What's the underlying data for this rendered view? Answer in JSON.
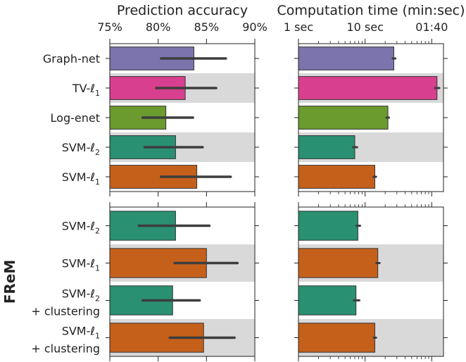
{
  "chart_data": [
    {
      "type": "bar",
      "orientation": "horizontal",
      "panel": "top-left",
      "title": "Prediction accuracy",
      "xlim": [
        75,
        90
      ],
      "xticks": [
        "75%",
        "80%",
        "85%",
        "90%"
      ],
      "xtick_values": [
        75,
        80,
        85,
        90
      ],
      "categories": [
        "Graph-net",
        "TV-ℓ1",
        "Log-enet",
        "SVM-ℓ2",
        "SVM-ℓ1"
      ],
      "values": [
        83.7,
        82.8,
        80.8,
        81.8,
        84.0
      ],
      "error_low": [
        80.3,
        79.8,
        78.4,
        78.6,
        80.3
      ],
      "error_high": [
        87.0,
        86.0,
        83.6,
        84.6,
        87.5
      ],
      "colors": [
        "#7b74ad",
        "#d93f8f",
        "#6b9a2e",
        "#2a9072",
        "#c5601b"
      ],
      "shaded_rows": [
        1,
        3
      ]
    },
    {
      "type": "bar",
      "orientation": "horizontal",
      "panel": "top-right",
      "title": "Computation time (min:sec)",
      "xscale": "log",
      "xlim_seconds": [
        1,
        150
      ],
      "xticks": [
        "1 sec",
        "10 sec",
        "01:40"
      ],
      "xtick_values_seconds": [
        1,
        10,
        100
      ],
      "categories": [
        "Graph-net",
        "TV-ℓ1",
        "Log-enet",
        "SVM-ℓ2",
        "SVM-ℓ1"
      ],
      "values_seconds": [
        27,
        120,
        22,
        7,
        14
      ],
      "error_low_seconds": [
        26,
        112,
        21,
        6.6,
        13.4
      ],
      "error_high_seconds": [
        28.5,
        130,
        22.8,
        7.6,
        14.6
      ],
      "colors": [
        "#7b74ad",
        "#d93f8f",
        "#6b9a2e",
        "#2a9072",
        "#c5601b"
      ],
      "shaded_rows": [
        1,
        3
      ]
    },
    {
      "type": "bar",
      "orientation": "horizontal",
      "panel": "bottom-left",
      "group_label": "FReM",
      "xlim": [
        75,
        90
      ],
      "categories": [
        "SVM-ℓ2",
        "SVM-ℓ1",
        "SVM-ℓ2\n+ clustering",
        "SVM-ℓ1\n+ clustering"
      ],
      "values": [
        81.8,
        85.0,
        81.5,
        84.7
      ],
      "error_low": [
        78.0,
        81.7,
        78.4,
        81.2
      ],
      "error_high": [
        85.3,
        88.2,
        84.3,
        87.9
      ],
      "colors": [
        "#2a9072",
        "#c5601b",
        "#2a9072",
        "#c5601b"
      ],
      "shaded_rows": [
        1,
        3
      ]
    },
    {
      "type": "bar",
      "orientation": "horizontal",
      "panel": "bottom-right",
      "xscale": "log",
      "xlim_seconds": [
        1,
        150
      ],
      "categories": [
        "SVM-ℓ2",
        "SVM-ℓ1",
        "SVM-ℓ2\n+ clustering",
        "SVM-ℓ1\n+ clustering"
      ],
      "values_seconds": [
        7.8,
        15.5,
        7.3,
        14.0
      ],
      "error_low_seconds": [
        7.4,
        14.8,
        6.8,
        13.5
      ],
      "error_high_seconds": [
        8.4,
        16.5,
        8.2,
        14.6
      ],
      "colors": [
        "#2a9072",
        "#c5601b",
        "#2a9072",
        "#c5601b"
      ],
      "shaded_rows": [
        1,
        3
      ]
    }
  ]
}
